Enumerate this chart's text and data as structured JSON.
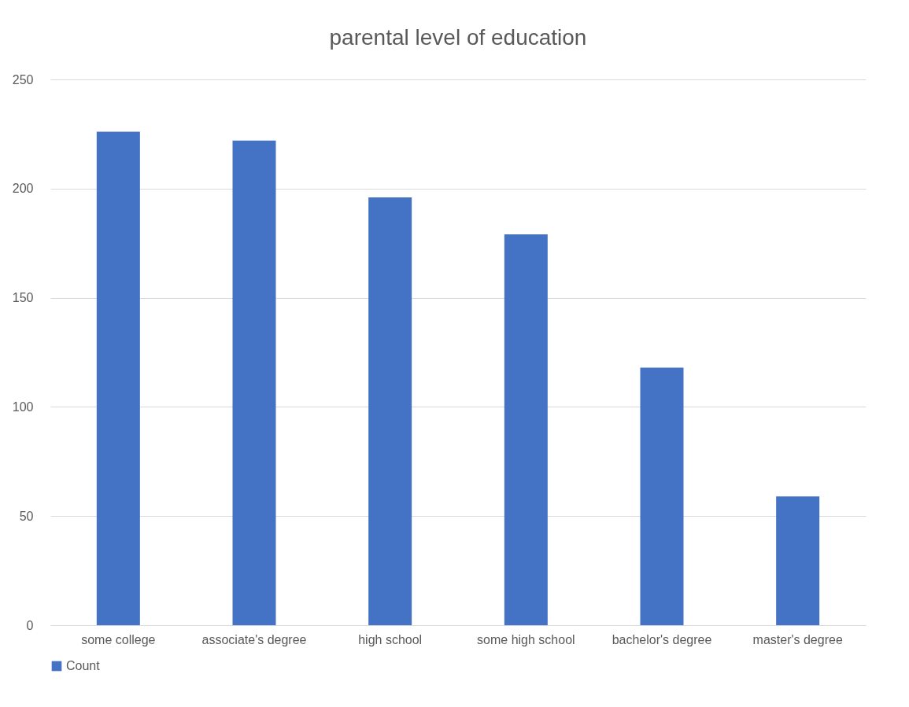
{
  "chart_data": {
    "type": "bar",
    "title": "parental level of education",
    "categories": [
      "some college",
      "associate's degree",
      "high school",
      "some high school",
      "bachelor's degree",
      "master's degree"
    ],
    "series": [
      {
        "name": "Count",
        "color": "#4472c4",
        "values": [
          226,
          222,
          196,
          179,
          118,
          59
        ]
      }
    ],
    "ylim": [
      0,
      250
    ],
    "yticks": [
      0,
      50,
      100,
      150,
      200,
      250
    ],
    "grid": "y",
    "legend": "bottom"
  }
}
